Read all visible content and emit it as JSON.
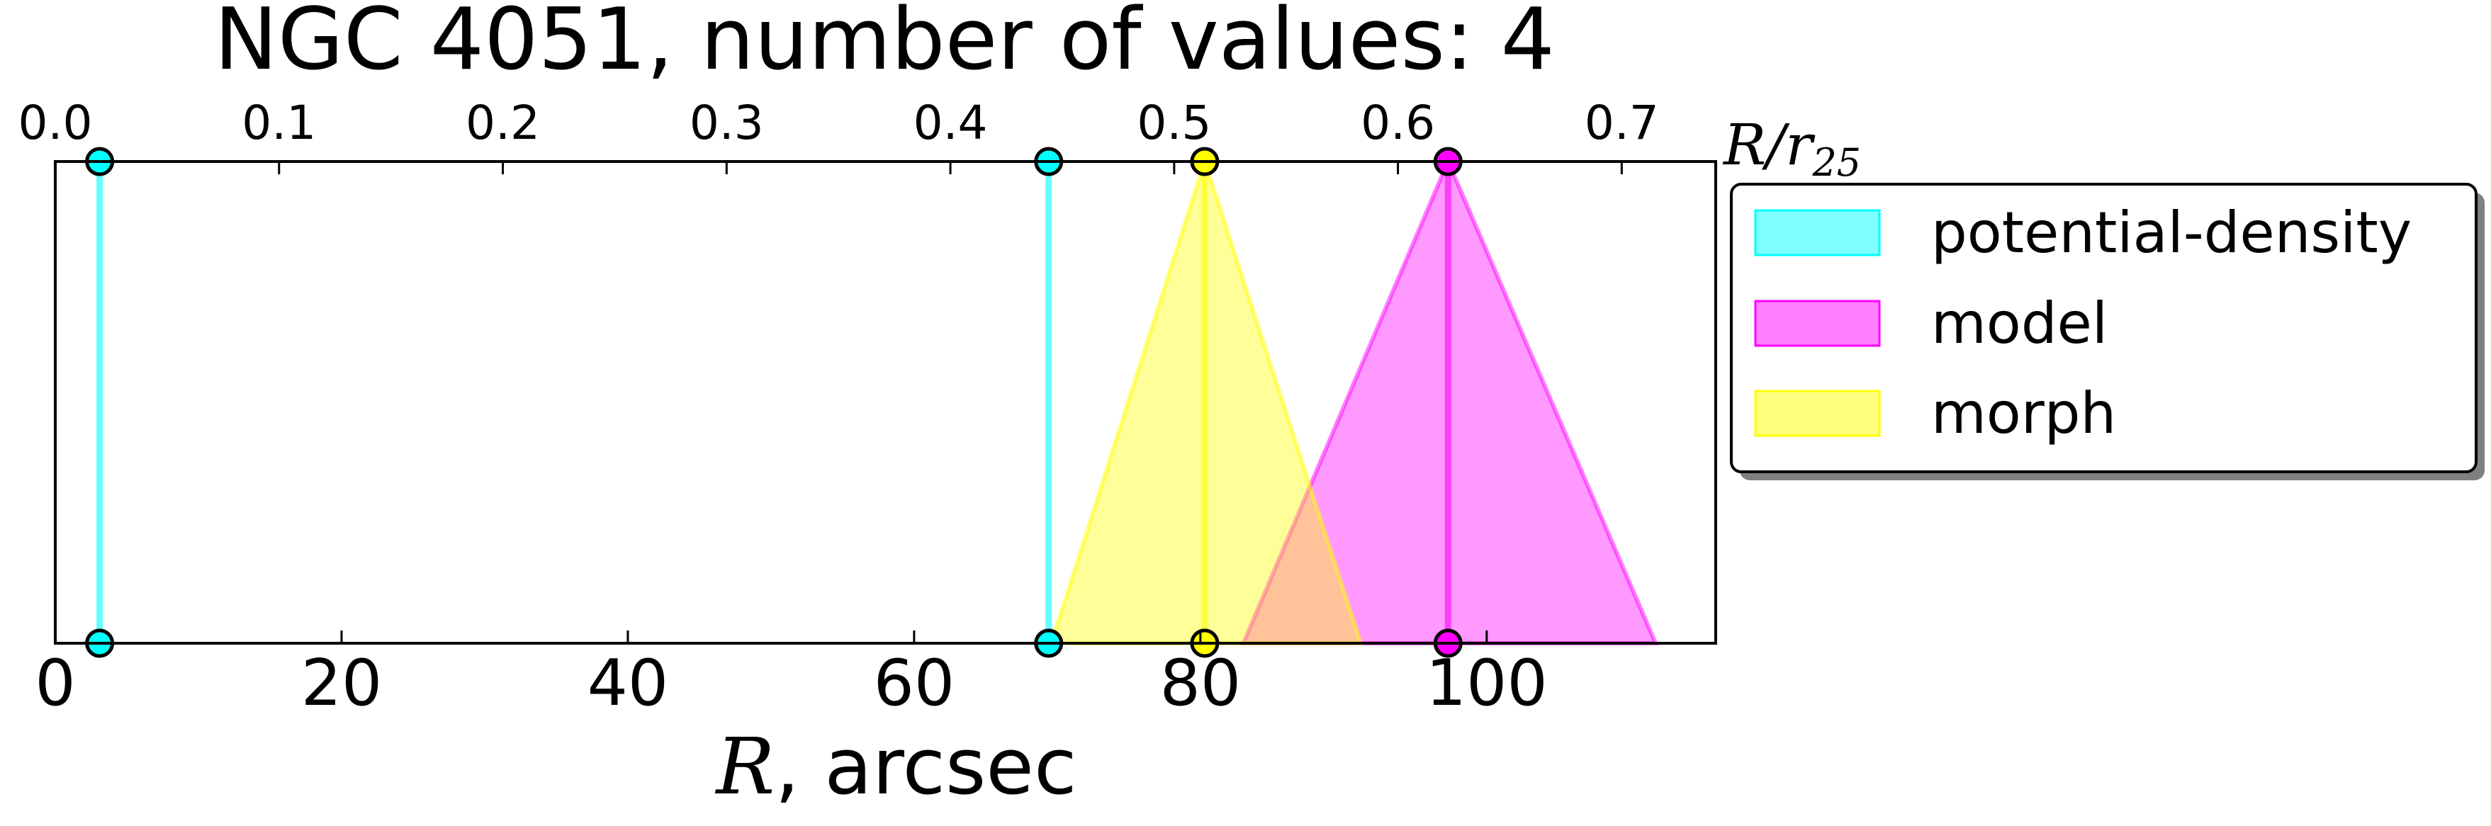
{
  "chart_data": {
    "type": "scatter",
    "title": "NGC 4051, number of values: 4",
    "xlabel": {
      "symbol": "R",
      "text": ", arcsec"
    },
    "x2label": {
      "numerator": "R",
      "separator": "/",
      "denominator": "r",
      "subscript": "25"
    },
    "xlim": [
      0,
      116
    ],
    "xticks": [
      0,
      20,
      40,
      60,
      80,
      100
    ],
    "x2lim": [
      0,
      0.742
    ],
    "x2ticks": [
      0.0,
      0.1,
      0.2,
      0.3,
      0.4,
      0.5,
      0.6,
      0.7
    ],
    "x2tick_labels": [
      "0.0",
      "0.1",
      "0.2",
      "0.3",
      "0.4",
      "0.5",
      "0.6",
      "0.7"
    ],
    "grid": false,
    "legend_placement": "outside upper right",
    "series": [
      {
        "name": "potential-density",
        "color": "#00ffff",
        "marks": [
          {
            "x": 3.1
          },
          {
            "x": 69.4
          }
        ]
      },
      {
        "name": "model",
        "color": "#ff00ff",
        "marks": [
          {
            "x": 97.3,
            "range": [
              83.0,
              111.8
            ]
          }
        ]
      },
      {
        "name": "morph",
        "color": "#ffff00",
        "marks": [
          {
            "x": 80.3,
            "range": [
              69.6,
              91.2
            ]
          }
        ]
      }
    ]
  }
}
